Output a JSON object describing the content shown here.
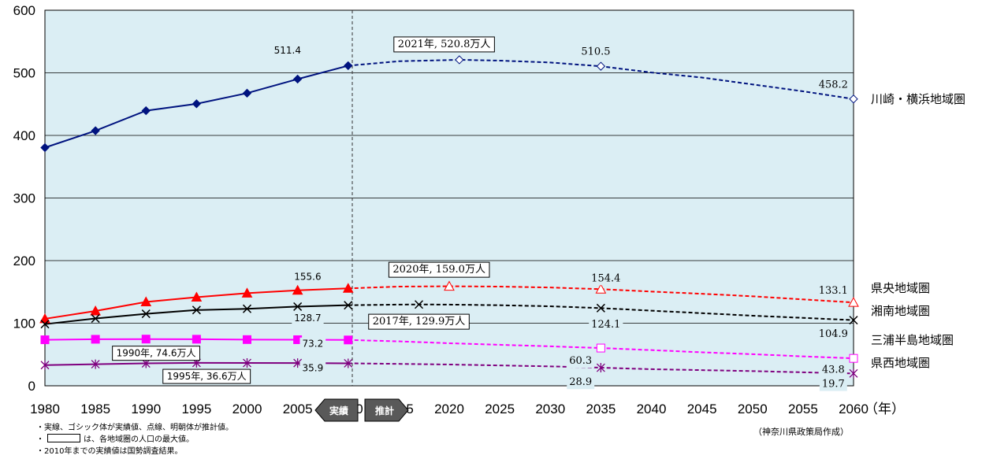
{
  "chart_data": {
    "type": "line",
    "xlabel": "（年）",
    "ylim": [
      0,
      600
    ],
    "xlim": [
      1980,
      2060
    ],
    "yticks": [
      0,
      100,
      200,
      300,
      400,
      500,
      600
    ],
    "xticks": [
      1980,
      1985,
      1990,
      1995,
      2000,
      2005,
      2010,
      2015,
      2020,
      2025,
      2030,
      2035,
      2040,
      2045,
      2050,
      2055,
      2060
    ],
    "actual_until": 2010,
    "grid": "horizontal",
    "series": [
      {
        "name": "川崎・横浜地域圏",
        "color": "#00137F",
        "marker": "diamond",
        "actual": {
          "x": [
            1980,
            1985,
            1990,
            1995,
            2000,
            2005,
            2010
          ],
          "y": [
            380.5,
            407.5,
            439.5,
            450.5,
            467.5,
            490,
            511.4
          ]
        },
        "projected": {
          "x": [
            2010,
            2015,
            2021,
            2025,
            2030,
            2035,
            2040,
            2045,
            2050,
            2055,
            2060
          ],
          "y": [
            511.4,
            518.5,
            520.8,
            519.5,
            516.5,
            510.5,
            500.5,
            492.5,
            481.5,
            470.5,
            458.2
          ]
        },
        "projected_markers": {
          "x": [
            2021,
            2035,
            2060
          ],
          "y": [
            520.8,
            510.5,
            458.2
          ]
        }
      },
      {
        "name": "県央地域圏",
        "color": "#FF0000",
        "marker": "triangle",
        "actual": {
          "x": [
            1980,
            1985,
            1990,
            1995,
            2000,
            2005,
            2010
          ],
          "y": [
            107,
            119.5,
            134,
            141.5,
            148,
            152.5,
            155.6
          ]
        },
        "projected": {
          "x": [
            2010,
            2015,
            2020,
            2025,
            2030,
            2035,
            2040,
            2045,
            2050,
            2055,
            2060
          ],
          "y": [
            155.6,
            158.5,
            159.0,
            158.5,
            157,
            154.4,
            150.5,
            147,
            143,
            138,
            133.1
          ]
        },
        "projected_markers": {
          "x": [
            2020,
            2035,
            2060
          ],
          "y": [
            159.0,
            154.4,
            133.1
          ]
        }
      },
      {
        "name": "湘南地域圏",
        "color": "#000000",
        "marker": "x",
        "actual": {
          "x": [
            1980,
            1985,
            1990,
            1995,
            2000,
            2005,
            2010
          ],
          "y": [
            98.5,
            107.5,
            115,
            121,
            123,
            126.5,
            128.7
          ]
        },
        "projected": {
          "x": [
            2010,
            2015,
            2017,
            2020,
            2025,
            2030,
            2035,
            2040,
            2045,
            2050,
            2055,
            2060
          ],
          "y": [
            128.7,
            129.7,
            129.9,
            129.7,
            128.7,
            127,
            124.1,
            120,
            116,
            112,
            108.5,
            104.9
          ]
        },
        "projected_markers": {
          "x": [
            2017,
            2035,
            2060
          ],
          "y": [
            129.9,
            124.1,
            104.9
          ]
        }
      },
      {
        "name": "三浦半島地域圏",
        "color": "#FF00FF",
        "marker": "square",
        "actual": {
          "x": [
            1980,
            1985,
            1990,
            1995,
            2000,
            2005,
            2010
          ],
          "y": [
            73.5,
            74.3,
            74.6,
            74.4,
            73.8,
            73.6,
            73.2
          ]
        },
        "projected": {
          "x": [
            2010,
            2015,
            2020,
            2025,
            2030,
            2035,
            2040,
            2045,
            2050,
            2055,
            2060
          ],
          "y": [
            73.2,
            71,
            68,
            65.5,
            63,
            60.3,
            57,
            53.5,
            50.5,
            47,
            43.8
          ]
        },
        "projected_markers": {
          "x": [
            2035,
            2060
          ],
          "y": [
            60.3,
            43.8
          ]
        }
      },
      {
        "name": "県西地域圏",
        "color": "#7F007F",
        "marker": "star",
        "actual": {
          "x": [
            1980,
            1985,
            1990,
            1995,
            2000,
            2005,
            2010
          ],
          "y": [
            33,
            34.5,
            35.8,
            36.6,
            36.4,
            36.3,
            35.9
          ]
        },
        "projected": {
          "x": [
            2010,
            2015,
            2020,
            2025,
            2030,
            2035,
            2040,
            2045,
            2050,
            2055,
            2060
          ],
          "y": [
            35.9,
            35,
            34,
            32.5,
            31,
            28.9,
            26.5,
            25,
            23.5,
            21.5,
            19.7
          ]
        },
        "projected_markers": {
          "x": [
            2035,
            2060
          ],
          "y": [
            28.9,
            19.7
          ]
        }
      }
    ],
    "annotations": [
      {
        "text": "511.4",
        "boxed": false,
        "font": "sans",
        "x": 2004,
        "y": 536
      },
      {
        "text": "2021年, 520.8万人",
        "boxed": true,
        "font": "serif",
        "x": 2019.5,
        "y": 546
      },
      {
        "text": "510.5",
        "boxed": false,
        "font": "serif",
        "x": 2034.5,
        "y": 534
      },
      {
        "text": "458.2",
        "boxed": false,
        "font": "serif",
        "x": 2058,
        "y": 481
      },
      {
        "text": "155.6",
        "boxed": false,
        "font": "sans",
        "x": 2006,
        "y": 174
      },
      {
        "text": "2020年, 159.0万人",
        "boxed": true,
        "font": "serif",
        "x": 2019,
        "y": 186
      },
      {
        "text": "154.4",
        "boxed": false,
        "font": "serif",
        "x": 2035.5,
        "y": 172
      },
      {
        "text": "133.1",
        "boxed": false,
        "font": "serif",
        "x": 2058,
        "y": 152
      },
      {
        "text": "128.7",
        "boxed": false,
        "font": "sans",
        "x": 2006,
        "y": 108
      },
      {
        "text": "2017年, 129.9万人",
        "boxed": true,
        "font": "serif",
        "x": 2017,
        "y": 103
      },
      {
        "text": "124.1",
        "boxed": false,
        "font": "serif",
        "x": 2035.5,
        "y": 98
      },
      {
        "text": "104.9",
        "boxed": false,
        "font": "serif",
        "x": 2058,
        "y": 83
      },
      {
        "text": "1990年, 74.6万人",
        "boxed": true,
        "font": "sans",
        "x": 1991,
        "y": 52
      },
      {
        "text": "73.2",
        "boxed": false,
        "font": "sans",
        "x": 2006.5,
        "y": 67
      },
      {
        "text": "60.3",
        "boxed": false,
        "font": "serif",
        "x": 2033,
        "y": 40
      },
      {
        "text": "43.8",
        "boxed": false,
        "font": "serif",
        "x": 2058,
        "y": 26
      },
      {
        "text": "1995年, 36.6万人",
        "boxed": true,
        "font": "sans",
        "x": 1996,
        "y": 15
      },
      {
        "text": "35.9",
        "boxed": false,
        "font": "sans",
        "x": 2006.5,
        "y": 28
      },
      {
        "text": "28.9",
        "boxed": false,
        "font": "serif",
        "x": 2033,
        "y": 6
      },
      {
        "text": "19.7",
        "boxed": false,
        "font": "serif",
        "x": 2058,
        "y": 3
      }
    ]
  },
  "arrows": {
    "left": "実績",
    "right": "推計"
  },
  "notes": {
    "line1": "・実線、ゴシック体が実績値、点線、明朝体が推計値。",
    "line2_prefix": "・",
    "line2_suffix": "は、各地域圏の人口の最大値。",
    "line3": "・2010年までの実績値は国勢調査結果。"
  },
  "source": "（神奈川県政策局作成）"
}
